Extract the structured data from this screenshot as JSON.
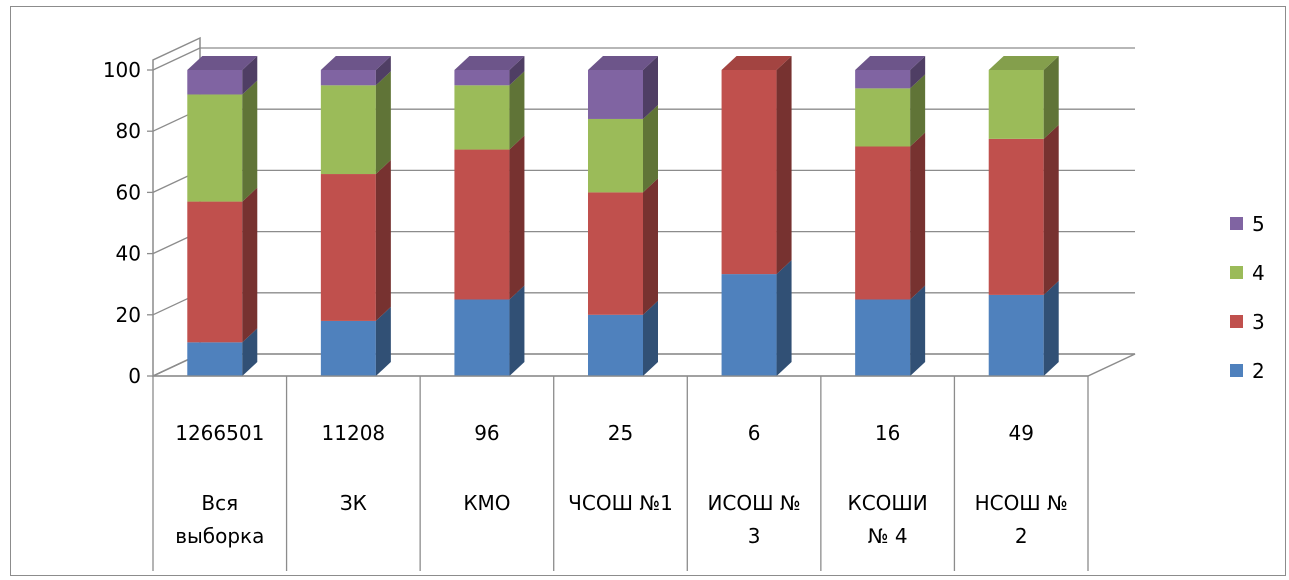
{
  "chart_data": {
    "type": "bar",
    "stacked": true,
    "three_d": true,
    "ylim": [
      0,
      100
    ],
    "yticks": [
      "0",
      "20",
      "40",
      "60",
      "80",
      "100"
    ],
    "grid": true,
    "legend_position": "right",
    "categories": [
      {
        "count": "1266501",
        "name": [
          "Вся",
          "выборка"
        ]
      },
      {
        "count": "11208",
        "name": [
          "ЗК"
        ]
      },
      {
        "count": "96",
        "name": [
          "КМО"
        ]
      },
      {
        "count": "25",
        "name": [
          "ЧСОШ №1"
        ]
      },
      {
        "count": "6",
        "name": [
          "ИСОШ №",
          "3"
        ]
      },
      {
        "count": "16",
        "name": [
          "КСОШИ",
          "№ 4"
        ]
      },
      {
        "count": "49",
        "name": [
          "НСОШ №",
          "2"
        ]
      }
    ],
    "series": [
      {
        "name": "2",
        "color": "#4f81bd",
        "values": [
          11,
          18,
          25,
          20,
          33.3,
          25,
          26.5
        ]
      },
      {
        "name": "3",
        "color": "#c0504d",
        "values": [
          46,
          48,
          49,
          40,
          66.7,
          50,
          51
        ]
      },
      {
        "name": "4",
        "color": "#9bbb59",
        "values": [
          35,
          29,
          21,
          24,
          0,
          19,
          22.5
        ]
      },
      {
        "name": "5",
        "color": "#8064a2",
        "values": [
          8,
          5,
          5,
          16,
          0,
          6,
          0
        ]
      }
    ]
  }
}
